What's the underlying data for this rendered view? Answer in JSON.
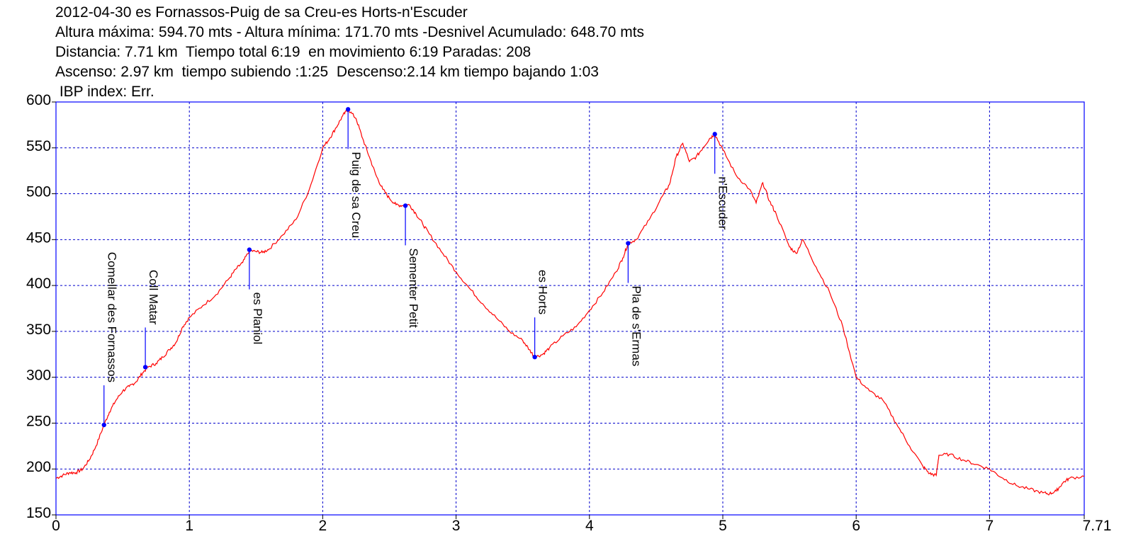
{
  "header": {
    "line1": "2012-04-30 es Fornassos-Puig de sa Creu-es Horts-n'Escuder",
    "line2": "Altura máxima: 594.70 mts - Altura mínima: 171.70 mts -Desnivel Acumulado: 648.70 mts",
    "line3": "Distancia: 7.71 km  Tiempo total 6:19  en movimiento 6:19 Paradas: 208",
    "line4": "Ascenso: 2.97 km  tiempo subiendo :1:25  Descenso:2.14 km tiempo bajando 1:03",
    "line5": " IBP index: Err."
  },
  "colors": {
    "frame": "#0000ff",
    "grid": "#0000cc",
    "profile": "#ff0000",
    "waypoint": "#0000ff",
    "text": "#000000"
  },
  "chart_data": {
    "type": "line",
    "xlim": [
      0,
      7.71
    ],
    "ylim": [
      150,
      600
    ],
    "x_ticks": [
      {
        "v": 0,
        "label": "0"
      },
      {
        "v": 1,
        "label": "1"
      },
      {
        "v": 2,
        "label": "2"
      },
      {
        "v": 3,
        "label": "3"
      },
      {
        "v": 4,
        "label": "4"
      },
      {
        "v": 5,
        "label": "5"
      },
      {
        "v": 6,
        "label": "6"
      },
      {
        "v": 7,
        "label": "7"
      },
      {
        "v": 7.71,
        "label": "7.71"
      }
    ],
    "y_ticks": [
      {
        "v": 150,
        "label": "150"
      },
      {
        "v": 200,
        "label": "200"
      },
      {
        "v": 250,
        "label": "250"
      },
      {
        "v": 300,
        "label": "300"
      },
      {
        "v": 350,
        "label": "350"
      },
      {
        "v": 400,
        "label": "400"
      },
      {
        "v": 450,
        "label": "450"
      },
      {
        "v": 500,
        "label": "500"
      },
      {
        "v": 550,
        "label": "550"
      },
      {
        "v": 600,
        "label": "600"
      }
    ],
    "grid": true,
    "profile": [
      [
        0,
        190
      ],
      [
        0.05,
        193
      ],
      [
        0.1,
        196
      ],
      [
        0.15,
        196
      ],
      [
        0.2,
        200
      ],
      [
        0.25,
        210
      ],
      [
        0.3,
        225
      ],
      [
        0.36,
        248
      ],
      [
        0.4,
        262
      ],
      [
        0.45,
        275
      ],
      [
        0.5,
        285
      ],
      [
        0.55,
        290
      ],
      [
        0.6,
        295
      ],
      [
        0.65,
        305
      ],
      [
        0.69,
        311
      ],
      [
        0.75,
        315
      ],
      [
        0.8,
        322
      ],
      [
        0.85,
        330
      ],
      [
        0.9,
        338
      ],
      [
        0.95,
        355
      ],
      [
        1.0,
        365
      ],
      [
        1.1,
        378
      ],
      [
        1.2,
        390
      ],
      [
        1.3,
        408
      ],
      [
        1.35,
        418
      ],
      [
        1.4,
        425
      ],
      [
        1.45,
        438
      ],
      [
        1.5,
        437
      ],
      [
        1.55,
        436
      ],
      [
        1.6,
        440
      ],
      [
        1.7,
        455
      ],
      [
        1.8,
        472
      ],
      [
        1.9,
        505
      ],
      [
        2.0,
        550
      ],
      [
        2.05,
        560
      ],
      [
        2.1,
        572
      ],
      [
        2.15,
        585
      ],
      [
        2.19,
        592
      ],
      [
        2.25,
        582
      ],
      [
        2.3,
        560
      ],
      [
        2.35,
        540
      ],
      [
        2.4,
        520
      ],
      [
        2.45,
        505
      ],
      [
        2.5,
        495
      ],
      [
        2.55,
        488
      ],
      [
        2.6,
        487
      ],
      [
        2.65,
        488
      ],
      [
        2.7,
        478
      ],
      [
        2.75,
        467
      ],
      [
        2.8,
        456
      ],
      [
        2.9,
        435
      ],
      [
        3.0,
        415
      ],
      [
        3.1,
        397
      ],
      [
        3.2,
        380
      ],
      [
        3.3,
        365
      ],
      [
        3.4,
        350
      ],
      [
        3.5,
        340
      ],
      [
        3.55,
        330
      ],
      [
        3.59,
        322
      ],
      [
        3.65,
        325
      ],
      [
        3.7,
        332
      ],
      [
        3.8,
        345
      ],
      [
        3.9,
        355
      ],
      [
        4.0,
        373
      ],
      [
        4.1,
        392
      ],
      [
        4.2,
        415
      ],
      [
        4.25,
        430
      ],
      [
        4.29,
        446
      ],
      [
        4.35,
        450
      ],
      [
        4.45,
        472
      ],
      [
        4.55,
        498
      ],
      [
        4.6,
        510
      ],
      [
        4.65,
        540
      ],
      [
        4.7,
        555
      ],
      [
        4.75,
        535
      ],
      [
        4.8,
        540
      ],
      [
        4.85,
        550
      ],
      [
        4.9,
        560
      ],
      [
        4.94,
        565
      ],
      [
        5.0,
        548
      ],
      [
        5.1,
        520
      ],
      [
        5.2,
        505
      ],
      [
        5.25,
        490
      ],
      [
        5.3,
        512
      ],
      [
        5.35,
        492
      ],
      [
        5.4,
        478
      ],
      [
        5.5,
        442
      ],
      [
        5.55,
        435
      ],
      [
        5.6,
        450
      ],
      [
        5.7,
        420
      ],
      [
        5.8,
        393
      ],
      [
        5.9,
        355
      ],
      [
        6.0,
        300
      ],
      [
        6.1,
        285
      ],
      [
        6.2,
        275
      ],
      [
        6.3,
        250
      ],
      [
        6.4,
        225
      ],
      [
        6.5,
        203
      ],
      [
        6.55,
        195
      ],
      [
        6.6,
        193
      ],
      [
        6.62,
        215
      ],
      [
        6.7,
        216
      ],
      [
        6.8,
        210
      ],
      [
        6.9,
        205
      ],
      [
        7.0,
        200
      ],
      [
        7.1,
        190
      ],
      [
        7.2,
        182
      ],
      [
        7.3,
        178
      ],
      [
        7.4,
        174
      ],
      [
        7.45,
        173
      ],
      [
        7.5,
        176
      ],
      [
        7.55,
        185
      ],
      [
        7.6,
        190
      ],
      [
        7.71,
        192
      ]
    ],
    "waypoints": [
      {
        "name": "Comellar des Fornassos",
        "x": 0.36,
        "y": 248,
        "dir": "up"
      },
      {
        "name": "Coll Matar",
        "x": 0.67,
        "y": 311,
        "dir": "up"
      },
      {
        "name": "es Planiol",
        "x": 1.45,
        "y": 439,
        "dir": "down"
      },
      {
        "name": "Puig de sa Creu",
        "x": 2.19,
        "y": 592,
        "dir": "down"
      },
      {
        "name": "Sementer Petit",
        "x": 2.62,
        "y": 487,
        "dir": "down"
      },
      {
        "name": "es Horts",
        "x": 3.59,
        "y": 322,
        "dir": "up"
      },
      {
        "name": "Pla de s'Ermas",
        "x": 4.29,
        "y": 446,
        "dir": "down"
      },
      {
        "name": "n'Escuder",
        "x": 4.94,
        "y": 565,
        "dir": "down"
      }
    ]
  }
}
